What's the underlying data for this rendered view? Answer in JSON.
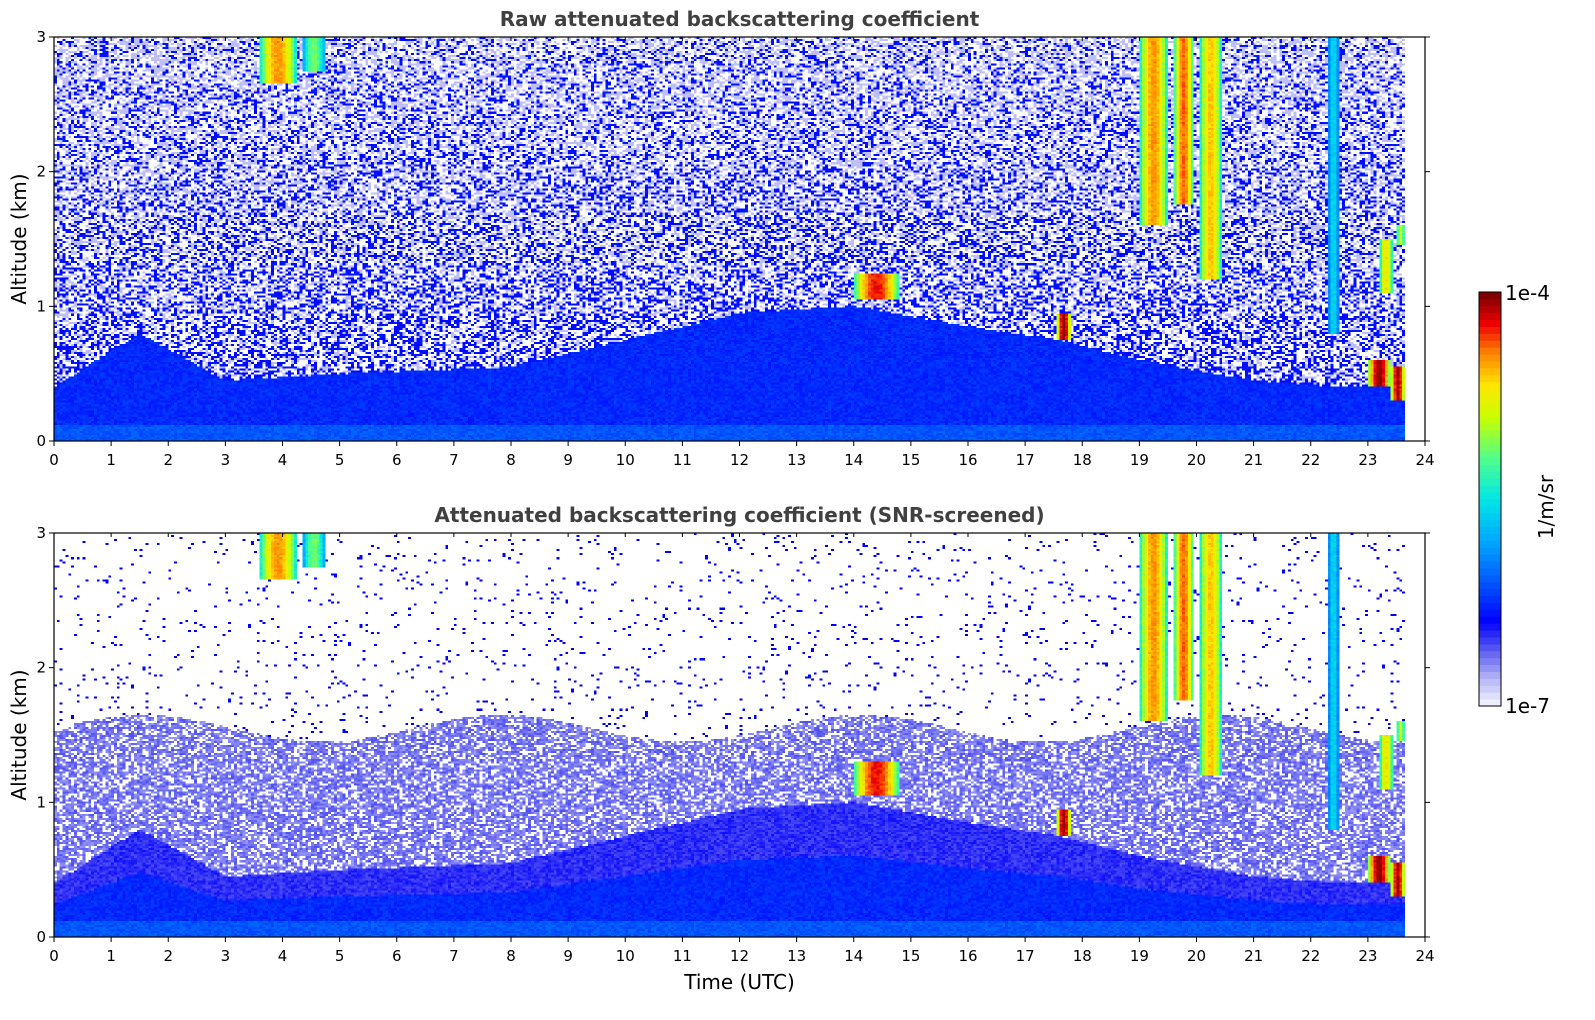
{
  "chart_data": [
    {
      "type": "heatmap",
      "title": "Raw attenuated backscattering coefficient",
      "xlabel": "",
      "ylabel": "Altitude (km)",
      "xlim": [
        0,
        24
      ],
      "ylim": [
        0,
        3
      ],
      "xticks": [
        "0",
        "1",
        "2",
        "3",
        "4",
        "5",
        "6",
        "7",
        "8",
        "9",
        "10",
        "11",
        "12",
        "13",
        "14",
        "15",
        "16",
        "17",
        "18",
        "19",
        "20",
        "21",
        "22",
        "23",
        "24"
      ],
      "yticks": [
        "0",
        "1",
        "2",
        "3"
      ],
      "noise_level": "high",
      "features": [
        {
          "x": [
            3.6,
            4.25
          ],
          "y": [
            2.65,
            3.0
          ],
          "intensity": 0.82
        },
        {
          "x": [
            4.35,
            4.75
          ],
          "y": [
            2.75,
            3.0
          ],
          "intensity": 0.6
        },
        {
          "x": [
            14.0,
            14.8
          ],
          "y": [
            1.05,
            1.25
          ],
          "intensity": 0.9
        },
        {
          "x": [
            17.55,
            17.8
          ],
          "y": [
            0.75,
            0.95
          ],
          "intensity": 0.97
        },
        {
          "x": [
            19.0,
            19.5
          ],
          "y": [
            1.6,
            3.0
          ],
          "intensity": 0.82
        },
        {
          "x": [
            19.6,
            19.95
          ],
          "y": [
            1.75,
            3.0
          ],
          "intensity": 0.85
        },
        {
          "x": [
            20.05,
            20.45
          ],
          "y": [
            1.2,
            3.0
          ],
          "intensity": 0.78
        },
        {
          "x": [
            22.3,
            22.5
          ],
          "y": [
            0.8,
            3.0
          ],
          "intensity": 0.45
        },
        {
          "x": [
            23.0,
            23.4
          ],
          "y": [
            0.4,
            0.6
          ],
          "intensity": 0.97
        },
        {
          "x": [
            23.4,
            23.65
          ],
          "y": [
            0.3,
            0.55
          ],
          "intensity": 0.95
        },
        {
          "x": [
            23.2,
            23.45
          ],
          "y": [
            1.1,
            1.5
          ],
          "intensity": 0.75
        },
        {
          "x": [
            23.5,
            23.65
          ],
          "y": [
            1.45,
            1.6
          ],
          "intensity": 0.7
        }
      ]
    },
    {
      "type": "heatmap",
      "title": "Attenuated backscattering coefficient (SNR-screened)",
      "xlabel": "Time (UTC)",
      "ylabel": "Altitude (km)",
      "xlim": [
        0,
        24
      ],
      "ylim": [
        0,
        3
      ],
      "xticks": [
        "0",
        "1",
        "2",
        "3",
        "4",
        "5",
        "6",
        "7",
        "8",
        "9",
        "10",
        "11",
        "12",
        "13",
        "14",
        "15",
        "16",
        "17",
        "18",
        "19",
        "20",
        "21",
        "22",
        "23",
        "24"
      ],
      "yticks": [
        "0",
        "1",
        "2",
        "3"
      ],
      "noise_level": "screened",
      "features": [
        {
          "x": [
            3.6,
            4.25
          ],
          "y": [
            2.65,
            3.0
          ],
          "intensity": 0.82
        },
        {
          "x": [
            4.35,
            4.75
          ],
          "y": [
            2.75,
            3.0
          ],
          "intensity": 0.6
        },
        {
          "x": [
            14.0,
            14.8
          ],
          "y": [
            1.05,
            1.3
          ],
          "intensity": 0.9
        },
        {
          "x": [
            17.55,
            17.8
          ],
          "y": [
            0.75,
            0.95
          ],
          "intensity": 0.97
        },
        {
          "x": [
            19.0,
            19.5
          ],
          "y": [
            1.6,
            3.0
          ],
          "intensity": 0.82
        },
        {
          "x": [
            19.6,
            19.95
          ],
          "y": [
            1.75,
            3.0
          ],
          "intensity": 0.85
        },
        {
          "x": [
            20.05,
            20.45
          ],
          "y": [
            1.2,
            3.0
          ],
          "intensity": 0.78
        },
        {
          "x": [
            22.3,
            22.5
          ],
          "y": [
            0.8,
            3.0
          ],
          "intensity": 0.45
        },
        {
          "x": [
            23.0,
            23.4
          ],
          "y": [
            0.4,
            0.6
          ],
          "intensity": 0.97
        },
        {
          "x": [
            23.4,
            23.65
          ],
          "y": [
            0.3,
            0.55
          ],
          "intensity": 0.95
        },
        {
          "x": [
            23.2,
            23.45
          ],
          "y": [
            1.1,
            1.5
          ],
          "intensity": 0.75
        },
        {
          "x": [
            23.5,
            23.65
          ],
          "y": [
            1.45,
            1.6
          ],
          "intensity": 0.7
        }
      ]
    }
  ],
  "colorbar": {
    "max_label": "1e-4",
    "min_label": "1e-7",
    "unit_label": "1/m/sr",
    "colors": [
      "#eeeeff",
      "#b4b4f8",
      "#5a5af0",
      "#0000ff",
      "#0060ff",
      "#00b0ff",
      "#00e6e6",
      "#40ff90",
      "#c8ff00",
      "#ffff00",
      "#ff9000",
      "#ff0000",
      "#800000"
    ]
  }
}
